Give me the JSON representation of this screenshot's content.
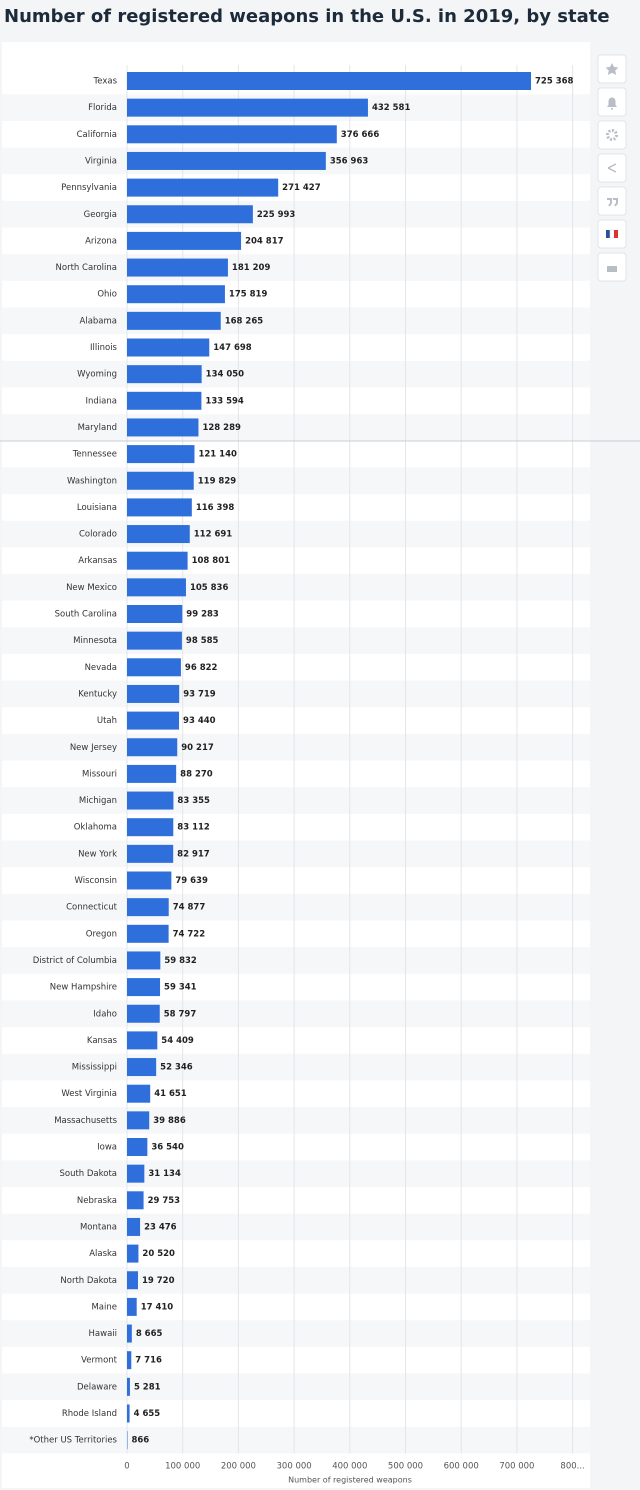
{
  "chart_data": {
    "type": "bar",
    "orientation": "horizontal",
    "title": "Number of registered weapons in the U.S. in 2019, by state",
    "x_label": "Number of registered weapons",
    "categories": [
      "Texas",
      "Florida",
      "California",
      "Virginia",
      "Pennsylvania",
      "Georgia",
      "Arizona",
      "North Carolina",
      "Ohio",
      "Alabama",
      "Illinois",
      "Wyoming",
      "Indiana",
      "Maryland",
      "Tennessee",
      "Washington",
      "Louisiana",
      "Colorado",
      "Arkansas",
      "New Mexico",
      "South Carolina",
      "Minnesota",
      "Nevada",
      "Kentucky",
      "Utah",
      "New Jersey",
      "Missouri",
      "Michigan",
      "Oklahoma",
      "New York",
      "Wisconsin",
      "Connecticut",
      "Oregon",
      "District of Columbia",
      "New Hampshire",
      "Idaho",
      "Kansas",
      "Mississippi",
      "West Virginia",
      "Massachusetts",
      "Iowa",
      "South Dakota",
      "Nebraska",
      "Montana",
      "Alaska",
      "North Dakota",
      "Maine",
      "Hawaii",
      "Vermont",
      "Delaware",
      "Rhode Island",
      "*Other US Territories"
    ],
    "values": [
      725368,
      432581,
      376666,
      356963,
      271427,
      225993,
      204817,
      181209,
      175819,
      168265,
      147698,
      134050,
      133594,
      128289,
      121140,
      119829,
      116398,
      112691,
      108801,
      105836,
      99283,
      98585,
      96822,
      93719,
      93440,
      90217,
      88270,
      83355,
      83112,
      82917,
      79639,
      74877,
      74722,
      59832,
      59341,
      58797,
      54409,
      52346,
      41651,
      39886,
      36540,
      31134,
      29753,
      23476,
      20520,
      19720,
      17410,
      8665,
      7716,
      5281,
      4655,
      866
    ],
    "value_labels": [
      "725 368",
      "432 581",
      "376 666",
      "356 963",
      "271 427",
      "225 993",
      "204 817",
      "181 209",
      "175 819",
      "168 265",
      "147 698",
      "134 050",
      "133 594",
      "128 289",
      "121 140",
      "119 829",
      "116 398",
      "112 691",
      "108 801",
      "105 836",
      "99 283",
      "98 585",
      "96 822",
      "93 719",
      "93 440",
      "90 217",
      "88 270",
      "83 355",
      "83 112",
      "82 917",
      "79 639",
      "74 877",
      "74 722",
      "59 832",
      "59 341",
      "58 797",
      "54 409",
      "52 346",
      "41 651",
      "39 886",
      "36 540",
      "31 134",
      "29 753",
      "23 476",
      "20 520",
      "19 720",
      "17 410",
      "8 665",
      "7 716",
      "5 281",
      "4 655",
      "866"
    ],
    "color": "#2f6fdb",
    "xlim": [
      0,
      800000
    ],
    "xticks": [
      0,
      {
        "value": 100000,
        "label": "100 000"
      },
      {
        "value": 200000,
        "label": "200 000"
      },
      {
        "value": 300000,
        "label": "300 000"
      },
      {
        "value": 400000,
        "label": "400 000"
      },
      {
        "value": 500000,
        "label": "500 000"
      },
      {
        "value": 600000,
        "label": "600 000"
      },
      {
        "value": 700000,
        "label": "700 000"
      },
      {
        "value": 800000,
        "label": "800..."
      }
    ],
    "grid": true
  }
}
